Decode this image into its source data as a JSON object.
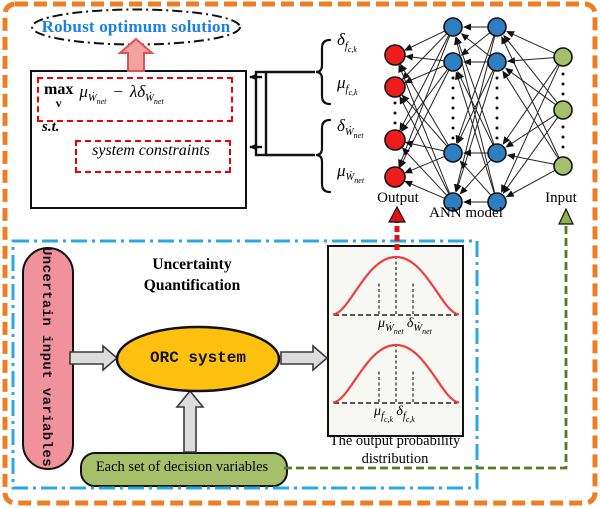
{
  "title": {
    "robust": "Robust optimum solution"
  },
  "optimization": {
    "max": "max",
    "v_var": "v",
    "st": "s.t.",
    "constraints": "system constraints"
  },
  "syms": {
    "mu_w": {
      "base": "μ",
      "sub": "Ẇ",
      "subsub": "net"
    },
    "delta_w": {
      "base": "δ",
      "sub": "Ẇ",
      "subsub": "net"
    },
    "mu_f": {
      "base": "μ",
      "sub": "f",
      "subsub": "c,k"
    },
    "delta_f": {
      "base": "δ",
      "sub": "f",
      "subsub": "c,k"
    },
    "minus": "−",
    "lambda": "λ"
  },
  "ann": {
    "output_label": "Output",
    "input_label": "Input",
    "model_label": "ANN model"
  },
  "uq": {
    "title_line1": "Uncertainty",
    "title_line2": "Quantification",
    "uncertain_input_label": "Uncertain input variables",
    "orc_label": "ORC system",
    "decision_label": "Each set of decision variables",
    "dist_caption_line1": "The output probability",
    "dist_caption_line2": "distribution"
  },
  "colors": {
    "outer_border": "#ee7e23",
    "uq_border": "#2ba8df",
    "title_text": "#1a7fe8",
    "uncertain_fill": "#f0919c",
    "orc_fill": "#ffc010",
    "decision_fill": "#a6bf6b",
    "output_node": "#ee1c1c",
    "hidden_node": "#2e7fc2",
    "input_node": "#a6bf6b",
    "curve": "#f23c3c",
    "dashed_box": "#f20000",
    "arrow_fill": "#dcdcdc",
    "pink_arrow": "#f2a3a0",
    "green_line": "#567c22"
  }
}
